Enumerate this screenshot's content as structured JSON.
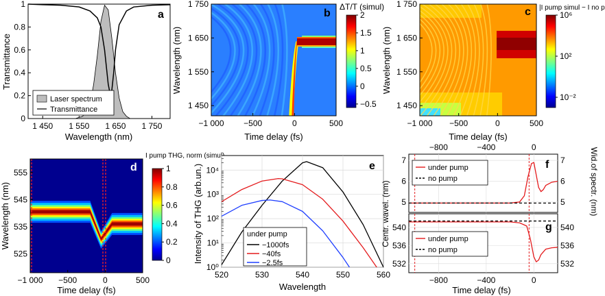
{
  "panels": {
    "a": {
      "letter": "a",
      "xlabel": "Wavelength (nm)",
      "ylabel": "Transmittance",
      "xticks": [
        "1 450",
        "1 550",
        "1 650",
        "1 750"
      ],
      "yticks": [
        "0",
        "0.2",
        "0.4",
        "0.6",
        "0.8",
        "1"
      ],
      "legend": [
        "Laser spectrum",
        "Transmittance"
      ]
    },
    "b": {
      "letter": "b",
      "xlabel": "Time delay (fs)",
      "ylabel": "Wavelength (nm)",
      "xticks": [
        "−1 000",
        "−500",
        "0",
        "500"
      ],
      "yticks": [
        "1 450",
        "1 550",
        "1 650",
        "1 750"
      ],
      "cb_title": "ΔT/T (simul)",
      "cb_ticks": [
        "2",
        "1.5",
        "1",
        "0.5",
        "0",
        "−0.5"
      ]
    },
    "c": {
      "letter": "c",
      "xlabel": "Time delay (fs)",
      "ylabel": "Wavelength (nm)",
      "xticks": [
        "−1 000",
        "−500",
        "0",
        "500"
      ],
      "yticks": [
        "1 450",
        "1 550",
        "1 650",
        "1 750"
      ],
      "cb_title": "|I pump simul − I no pump simul|",
      "cb_ticks": [
        "10⁶",
        "10²",
        "10⁻²"
      ]
    },
    "d": {
      "letter": "d",
      "xlabel": "Time delay (fs)",
      "ylabel": "Wavelength (nm)",
      "xticks": [
        "−1 000",
        "−500",
        "0",
        "500"
      ],
      "yticks": [
        "555",
        "545",
        "535",
        "525"
      ],
      "cb_title": "I pump THG, norm (simul)",
      "cb_ticks": [
        "1",
        "0.8",
        "0.6",
        "0.4",
        "0.2",
        "0"
      ]
    },
    "e": {
      "letter": "e",
      "xlabel": "Wavelength",
      "ylabel": "Intensity of THG (arb.un.)",
      "xticks": [
        "520",
        "530",
        "540",
        "550",
        "560"
      ],
      "yticks": [
        "10⁰",
        "10¹",
        "10²",
        "10³",
        "10⁴"
      ],
      "legend_title": "under pump"
    },
    "f": {
      "letter": "f",
      "xticks_top": [
        "−800",
        "−400",
        "0"
      ],
      "yticks_left": [
        "7",
        "6",
        "5"
      ],
      "yticks_right": [
        "7",
        "6",
        "5"
      ],
      "ylabel_right": "Wid.of spectr. (nm)",
      "legend": [
        "under pump",
        "no pump"
      ]
    },
    "g": {
      "letter": "g",
      "xlabel": "Time delay (fs)",
      "ylabel_left": "Centr. wavel. (nm)",
      "xticks": [
        "−800",
        "−400",
        "0"
      ],
      "yticks_left": [
        "540",
        "536",
        "532"
      ],
      "yticks_right": [
        "540",
        "536",
        "532"
      ],
      "legend": [
        "under pump",
        "no pump"
      ]
    }
  },
  "chart_data": [
    {
      "id": "a",
      "type": "line",
      "xlim": [
        1410,
        1800
      ],
      "ylim": [
        0,
        1
      ],
      "series": [
        {
          "name": "Transmittance",
          "x": [
            1410,
            1450,
            1500,
            1550,
            1580,
            1600,
            1610,
            1620,
            1625,
            1630,
            1635,
            1640,
            1645,
            1650,
            1660,
            1680,
            1700,
            1750,
            1800
          ],
          "y": [
            1,
            0.995,
            0.99,
            0.975,
            0.94,
            0.88,
            0.8,
            0.6,
            0.45,
            0.3,
            0.22,
            0.25,
            0.4,
            0.6,
            0.82,
            0.94,
            0.975,
            0.99,
            0.995
          ]
        },
        {
          "name": "Laser spectrum",
          "x": [
            1540,
            1560,
            1580,
            1590,
            1600,
            1610,
            1620,
            1630,
            1640,
            1650,
            1660,
            1670,
            1680,
            1690
          ],
          "y": [
            0,
            0.02,
            0.12,
            0.3,
            0.55,
            0.85,
            0.99,
            0.95,
            0.7,
            0.4,
            0.18,
            0.06,
            0.02,
            0
          ]
        }
      ]
    },
    {
      "id": "b",
      "type": "heatmap",
      "xlim": [
        -1000,
        500
      ],
      "ylim": [
        1420,
        1750
      ],
      "clim": [
        -0.6,
        2
      ]
    },
    {
      "id": "c",
      "type": "heatmap",
      "xlim": [
        -1000,
        500
      ],
      "ylim": [
        1420,
        1750
      ],
      "clim": [
        -3,
        6
      ],
      "log": true
    },
    {
      "id": "d",
      "type": "heatmap",
      "xlim": [
        -1000,
        500
      ],
      "ylim": [
        518,
        560
      ],
      "clim": [
        0,
        1
      ]
    },
    {
      "id": "e",
      "type": "line",
      "xlim": [
        520,
        560
      ],
      "ylim_log": [
        0,
        4.6
      ],
      "series": [
        {
          "name": "−1000fs",
          "color": "#000000",
          "x": [
            520,
            525,
            530,
            535,
            540,
            541,
            545,
            550,
            555,
            560
          ],
          "y": [
            0.1,
            1.45,
            2.55,
            3.55,
            4.3,
            4.35,
            4.1,
            3.1,
            1.75,
            0
          ]
        },
        {
          "name": "−40fs",
          "color": "#e41a1c",
          "x": [
            520,
            525,
            530,
            534,
            535,
            540,
            545,
            550,
            555,
            560
          ],
          "y": [
            2.7,
            3.2,
            3.55,
            3.65,
            3.64,
            3.4,
            2.8,
            1.9,
            0.8,
            -0.4
          ]
        },
        {
          "name": "−2.5fs",
          "color": "#1f3fff",
          "x": [
            520,
            525,
            530,
            532,
            535,
            540,
            545,
            550,
            552
          ],
          "y": [
            2.1,
            2.55,
            2.75,
            2.77,
            2.7,
            2.3,
            1.5,
            0.4,
            -0.1
          ]
        }
      ]
    },
    {
      "id": "f",
      "type": "line",
      "xlim": [
        -1050,
        200
      ],
      "ylim": [
        4.5,
        7.3
      ],
      "series": [
        {
          "name": "under pump",
          "color": "#e41a1c",
          "x": [
            -1050,
            -200,
            -120,
            -80,
            -50,
            -20,
            0,
            20,
            40,
            60,
            80,
            100,
            150,
            200
          ],
          "y": [
            4.95,
            4.95,
            5.0,
            5.3,
            6.2,
            6.85,
            6.9,
            6.3,
            5.7,
            5.5,
            5.6,
            5.8,
            5.95,
            6.0
          ]
        },
        {
          "name": "no pump",
          "color": "#000000",
          "dash": true,
          "x": [
            -1050,
            200
          ],
          "y": [
            4.95,
            4.95
          ]
        }
      ],
      "vlines": [
        -1000,
        -40
      ]
    },
    {
      "id": "g",
      "type": "line",
      "xlim": [
        -1050,
        200
      ],
      "ylim": [
        530,
        543
      ],
      "series": [
        {
          "name": "under pump",
          "color": "#e41a1c",
          "x": [
            -1050,
            -200,
            -120,
            -60,
            -30,
            0,
            20,
            40,
            60,
            100,
            150,
            200
          ],
          "y": [
            541.2,
            541.2,
            541.0,
            540.3,
            537.5,
            533.5,
            532.4,
            532.8,
            534,
            535.2,
            535.5,
            535.6
          ]
        },
        {
          "name": "no pump",
          "color": "#000000",
          "dash": true,
          "x": [
            -1050,
            200
          ],
          "y": [
            541.4,
            541.4
          ]
        }
      ],
      "vlines": [
        -1000,
        -40
      ]
    }
  ]
}
